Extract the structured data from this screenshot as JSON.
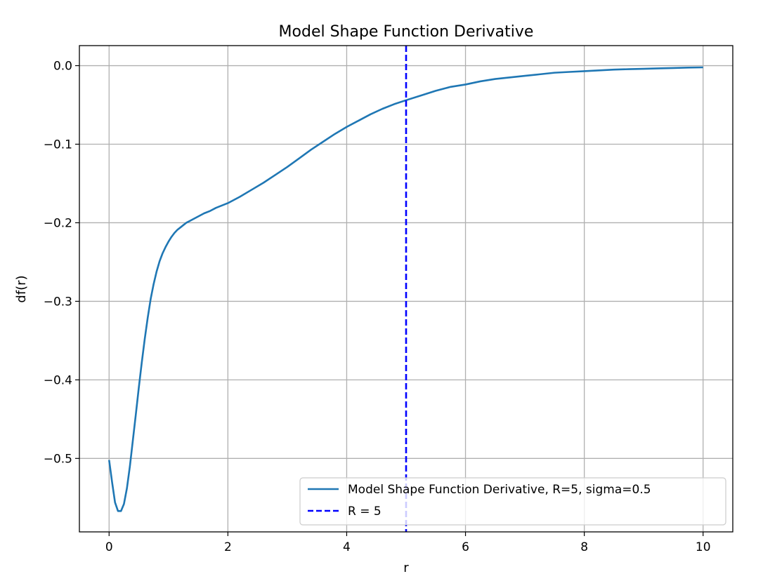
{
  "chart_data": {
    "type": "line",
    "title": "Model Shape Function Derivative",
    "xlabel": "r",
    "ylabel": "df(r)",
    "xlim": [
      -0.5,
      10.5
    ],
    "ylim": [
      -0.5935,
      0.0255
    ],
    "xticks": [
      0,
      2,
      4,
      6,
      8,
      10
    ],
    "xtick_labels": [
      "0",
      "2",
      "4",
      "6",
      "8",
      "10"
    ],
    "yticks": [
      0.0,
      -0.1,
      -0.2,
      -0.3,
      -0.4,
      -0.5
    ],
    "ytick_labels": [
      "0.0",
      "−0.1",
      "−0.2",
      "−0.3",
      "−0.4",
      "−0.5"
    ],
    "grid": true,
    "legend_position": "bottom-right",
    "series": [
      {
        "name": "Model Shape Function Derivative, R=5, sigma=0.5",
        "color": "#1f77b4",
        "style": "solid",
        "x": [
          0.0,
          0.05,
          0.1,
          0.15,
          0.2,
          0.25,
          0.3,
          0.35,
          0.4,
          0.45,
          0.5,
          0.55,
          0.6,
          0.65,
          0.7,
          0.75,
          0.8,
          0.85,
          0.9,
          0.95,
          1.0,
          1.05,
          1.1,
          1.15,
          1.2,
          1.25,
          1.3,
          1.35,
          1.4,
          1.5,
          1.6,
          1.7,
          1.8,
          1.9,
          2.0,
          2.2,
          2.4,
          2.6,
          2.8,
          3.0,
          3.2,
          3.4,
          3.6,
          3.8,
          4.0,
          4.2,
          4.4,
          4.6,
          4.8,
          5.0,
          5.25,
          5.5,
          5.75,
          6.0,
          6.25,
          6.5,
          6.75,
          7.0,
          7.25,
          7.5,
          7.75,
          8.0,
          8.25,
          8.5,
          8.75,
          9.0,
          9.25,
          9.5,
          9.75,
          10.0
        ],
        "y": [
          -0.502,
          -0.53,
          -0.556,
          -0.567,
          -0.567,
          -0.558,
          -0.538,
          -0.51,
          -0.477,
          -0.444,
          -0.41,
          -0.378,
          -0.348,
          -0.321,
          -0.297,
          -0.278,
          -0.262,
          -0.249,
          -0.239,
          -0.231,
          -0.224,
          -0.218,
          -0.213,
          -0.209,
          -0.206,
          -0.203,
          -0.2,
          -0.198,
          -0.196,
          -0.192,
          -0.188,
          -0.185,
          -0.181,
          -0.178,
          -0.175,
          -0.167,
          -0.158,
          -0.149,
          -0.139,
          -0.129,
          -0.118,
          -0.107,
          -0.097,
          -0.087,
          -0.078,
          -0.07,
          -0.062,
          -0.055,
          -0.049,
          -0.044,
          -0.038,
          -0.032,
          -0.027,
          -0.024,
          -0.02,
          -0.017,
          -0.015,
          -0.013,
          -0.011,
          -0.009,
          -0.008,
          -0.007,
          -0.006,
          -0.005,
          -0.0045,
          -0.004,
          -0.0035,
          -0.003,
          -0.0025,
          -0.0022
        ]
      },
      {
        "name": "R = 5",
        "color": "#0000ff",
        "style": "dashed",
        "type": "vline",
        "x_value": 5
      }
    ]
  }
}
